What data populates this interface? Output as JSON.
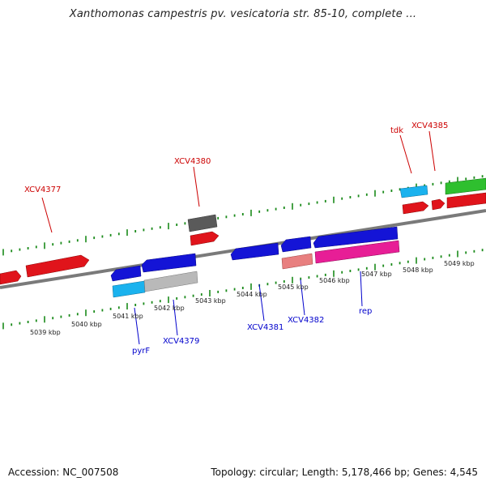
{
  "title": "Xanthomonas campestris pv. vesicatoria str. 85-10, complete ...",
  "footer": {
    "accession": "Accession: NC_007508",
    "topology": "Topology: circular; Length: 5,178,466 bp; Genes: 4,545"
  },
  "colors": {
    "backbone": "#8a8a8a",
    "tick": "#1a8a1a",
    "top_label": "#cc0000",
    "bottom_label": "#0000cc",
    "red": "#e0141b",
    "blue": "#1414d6",
    "cyan": "#1ab2ee",
    "gray_dark": "#5a5a5a",
    "gray_light": "#b9b9b9",
    "salmon": "#e87f7f",
    "magenta": "#e71e96",
    "green": "#2fbf2f"
  },
  "scale_labels": [
    "5039 kbp",
    "5040 kbp",
    "5041 kbp",
    "5042 kbp",
    "5043 kbp",
    "5044 kbp",
    "5045 kbp",
    "5046 kbp",
    "5047 kbp",
    "5048 kbp",
    "5049 kbp"
  ],
  "top_labels": [
    "XCV4377",
    "XCV4380",
    "tdk",
    "XCV4385"
  ],
  "bottom_labels": [
    "pyrF",
    "XCV4379",
    "XCV4381",
    "XCV4382",
    "rep"
  ]
}
